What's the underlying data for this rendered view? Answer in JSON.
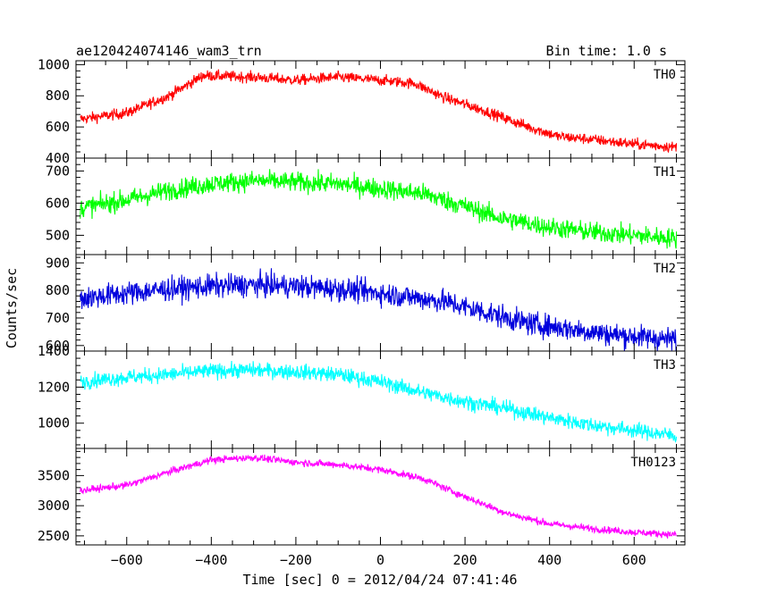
{
  "header": {
    "title": "ae120424074146_wam3_trn",
    "bin_time": "Bin time: 1.0 s"
  },
  "axes": {
    "xlabel": "Time [sec] 0 = 2012/04/24 07:41:46",
    "ylabel": "Counts/sec"
  },
  "chart_data": {
    "type": "line",
    "x_range": [
      -720,
      720
    ],
    "x_ticks": [
      -600,
      -400,
      -200,
      0,
      200,
      400,
      600
    ],
    "x_tick_labels": [
      "−600",
      "−400",
      "−200",
      "0",
      "200",
      "400",
      "600"
    ],
    "x_data_range": [
      -710,
      700
    ],
    "bin_seconds": 1.0,
    "grid": false,
    "panels": [
      {
        "name": "TH0",
        "color": "#ff0000",
        "ylim": [
          400,
          1025
        ],
        "yticks": [
          400,
          600,
          800,
          1000
        ],
        "trend_x": [
          -710,
          -600,
          -500,
          -420,
          -300,
          -200,
          -100,
          0,
          80,
          150,
          250,
          350,
          420,
          500,
          600,
          700
        ],
        "trend_y": [
          650,
          690,
          800,
          930,
          920,
          900,
          920,
          900,
          880,
          790,
          700,
          600,
          540,
          520,
          490,
          470
        ],
        "noise_amp": 45
      },
      {
        "name": "TH1",
        "color": "#00ff00",
        "ylim": [
          440,
          740
        ],
        "yticks": [
          500,
          600,
          700
        ],
        "trend_x": [
          -710,
          -600,
          -500,
          -400,
          -300,
          -200,
          -100,
          0,
          100,
          200,
          280,
          400,
          500,
          600,
          700
        ],
        "trend_y": [
          585,
          610,
          640,
          660,
          670,
          665,
          660,
          645,
          630,
          590,
          555,
          525,
          510,
          500,
          490
        ],
        "noise_amp": 40
      },
      {
        "name": "TH2",
        "color": "#0000dd",
        "ylim": [
          580,
          930
        ],
        "yticks": [
          600,
          700,
          800,
          900
        ],
        "trend_x": [
          -710,
          -600,
          -500,
          -400,
          -300,
          -200,
          -100,
          0,
          100,
          150,
          250,
          350,
          450,
          550,
          700
        ],
        "trend_y": [
          770,
          790,
          805,
          815,
          820,
          815,
          805,
          790,
          770,
          760,
          720,
          680,
          660,
          640,
          620
        ],
        "noise_amp": 55
      },
      {
        "name": "TH3",
        "color": "#00ffff",
        "ylim": [
          860,
          1400
        ],
        "yticks": [
          1000,
          1200,
          1400
        ],
        "trend_x": [
          -710,
          -600,
          -500,
          -400,
          -300,
          -200,
          -100,
          0,
          100,
          200,
          300,
          400,
          500,
          600,
          700
        ],
        "trend_y": [
          1230,
          1255,
          1270,
          1290,
          1295,
          1285,
          1270,
          1230,
          1170,
          1120,
          1080,
          1030,
          990,
          960,
          930
        ],
        "noise_amp": 55
      },
      {
        "name": "TH0123",
        "color": "#ff00ff",
        "ylim": [
          2350,
          3950
        ],
        "yticks": [
          2500,
          3000,
          3500
        ],
        "trend_x": [
          -710,
          -600,
          -500,
          -400,
          -300,
          -200,
          -100,
          0,
          100,
          200,
          300,
          400,
          500,
          600,
          700
        ],
        "trend_y": [
          3250,
          3340,
          3560,
          3760,
          3800,
          3720,
          3680,
          3600,
          3450,
          3150,
          2870,
          2700,
          2620,
          2560,
          2520
        ],
        "noise_amp": 75
      }
    ]
  }
}
